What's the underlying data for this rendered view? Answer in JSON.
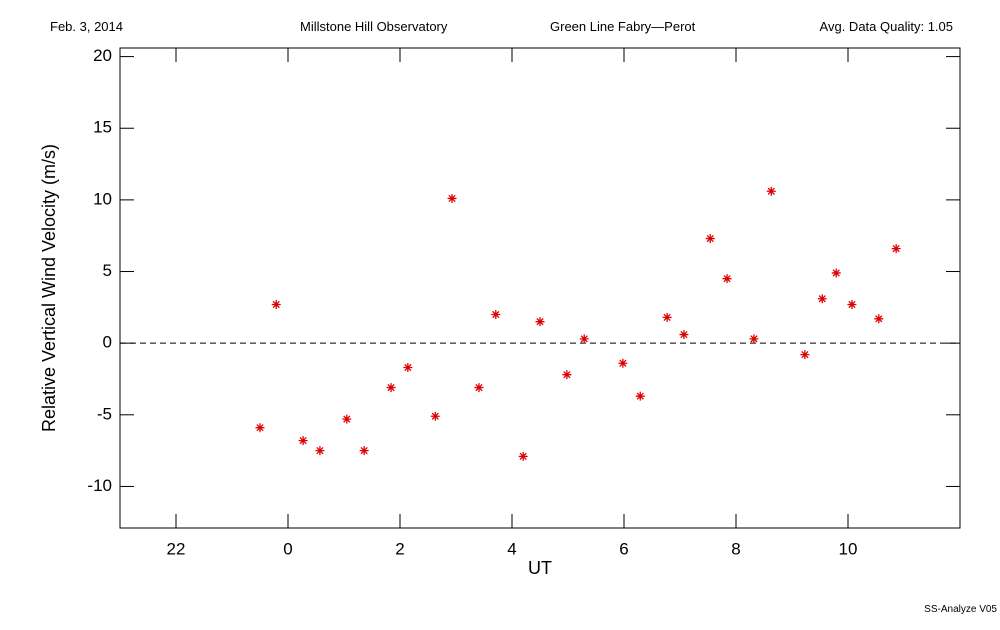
{
  "header": {
    "date": "Feb. 3, 2014",
    "observatory": "Millstone Hill Observatory",
    "instrument": "Green Line Fabry—Perot",
    "quality": "Avg. Data Quality: 1.05"
  },
  "footer": "SS-Analyze V05",
  "chart_data": {
    "type": "scatter",
    "x_label": "UT",
    "y_label": "Relative Vertical Wind Velocity (m/s)",
    "color": "#e00000",
    "x": [
      -0.5,
      -0.21,
      0.27,
      0.57,
      1.05,
      1.36,
      1.84,
      2.14,
      2.63,
      2.93,
      3.41,
      3.71,
      4.2,
      4.5,
      4.98,
      5.29,
      5.98,
      6.29,
      6.77,
      7.07,
      7.54,
      7.84,
      8.32,
      8.63,
      9.23,
      9.54,
      9.79,
      10.07,
      10.55,
      10.86
    ],
    "values": [
      -5.9,
      2.7,
      -6.8,
      -7.5,
      -5.3,
      -7.5,
      -3.1,
      -1.7,
      -5.1,
      10.1,
      -3.1,
      2.0,
      -7.9,
      1.5,
      -2.2,
      0.3,
      -1.4,
      -3.7,
      1.8,
      0.6,
      7.3,
      4.5,
      0.3,
      10.6,
      -0.8,
      3.1,
      4.9,
      2.7,
      1.7,
      6.6
    ],
    "xlim": [
      -3,
      12
    ],
    "xticks": [
      {
        "value": -2,
        "label": "22"
      },
      0,
      2,
      4,
      6,
      8,
      10
    ],
    "ylim": [
      -12.9,
      20.6
    ],
    "yticks": [
      -10,
      -5,
      0,
      5,
      10,
      15,
      20
    ],
    "zero_line": 0
  }
}
